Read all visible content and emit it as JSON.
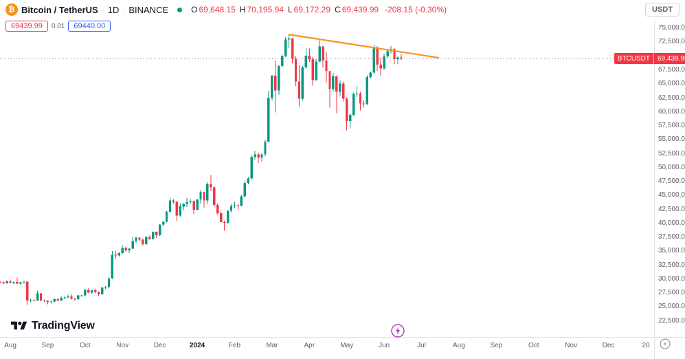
{
  "header": {
    "symbol_icon": "₿",
    "title": "Bitcoin / TetherUS",
    "separator": "·",
    "interval": "1D",
    "exchange": "BINANCE",
    "ohlc": {
      "o_label": "O",
      "o": "69,648.15",
      "h_label": "H",
      "h": "70,195.94",
      "l_label": "L",
      "l": "69,172.29",
      "c_label": "C",
      "c": "69,439.99",
      "change": "-208.15 (-0.30%)"
    },
    "currency_button": "USDT"
  },
  "trade_panel": {
    "sell_price": "69439.99",
    "spread": "0.01",
    "buy_price": "69440.00"
  },
  "price_label": {
    "symbol": "BTCUSDT",
    "price": "69,439.99"
  },
  "logo": {
    "text": "TradingView"
  },
  "chart_data": {
    "type": "candlestick",
    "symbol": "BTCUSDT",
    "exchange": "BINANCE",
    "interval": "1D",
    "grid": false,
    "up_color": "#089981",
    "down_color": "#f23645",
    "current_price": 69439.99,
    "current_price_line_color": "#787b86",
    "trendline": {
      "color": "#f7941d",
      "from_index": 82,
      "from_price": 73750,
      "to_index": 126,
      "to_price": 69600
    },
    "price_axis": {
      "min": 19500,
      "max": 76250,
      "ticks": [
        75000,
        72500,
        67500,
        65000,
        62500,
        60000,
        57500,
        55000,
        52500,
        50000,
        47500,
        45000,
        42500,
        40000,
        37500,
        35000,
        32500,
        30000,
        27500,
        25000,
        22500
      ]
    },
    "time_axis": {
      "ticks": [
        {
          "label": "Aug",
          "index": 0
        },
        {
          "label": "Sep",
          "index": 11
        },
        {
          "label": "Oct",
          "index": 22
        },
        {
          "label": "Nov",
          "index": 33
        },
        {
          "label": "Dec",
          "index": 44
        },
        {
          "label": "2024",
          "index": 55,
          "emphasis": true
        },
        {
          "label": "Feb",
          "index": 66
        },
        {
          "label": "Mar",
          "index": 77
        },
        {
          "label": "Apr",
          "index": 88
        },
        {
          "label": "May",
          "index": 99
        },
        {
          "label": "Jun",
          "index": 110
        },
        {
          "label": "Jul",
          "index": 121
        },
        {
          "label": "Aug",
          "index": 132
        },
        {
          "label": "Sep",
          "index": 143
        },
        {
          "label": "Oct",
          "index": 154
        },
        {
          "label": "Nov",
          "index": 165
        },
        {
          "label": "Dec",
          "index": 176
        },
        {
          "label": "20",
          "index": 187
        }
      ]
    },
    "start_index": -3,
    "candles": [
      [
        29350,
        29600,
        29150,
        29300
      ],
      [
        29300,
        29500,
        29000,
        29150
      ],
      [
        29150,
        29650,
        29050,
        29500
      ],
      [
        29500,
        29780,
        29100,
        29180
      ],
      [
        29180,
        29460,
        28950,
        29400
      ],
      [
        29400,
        30150,
        29250,
        29060
      ],
      [
        29060,
        29360,
        28800,
        29300
      ],
      [
        29300,
        29520,
        29060,
        29420
      ],
      [
        29420,
        29470,
        25250,
        26050
      ],
      [
        26050,
        26360,
        25750,
        26110
      ],
      [
        26110,
        26260,
        25850,
        26010
      ],
      [
        26010,
        27760,
        25960,
        27310
      ],
      [
        27310,
        27420,
        25910,
        26060
      ],
      [
        26060,
        26210,
        25810,
        25960
      ],
      [
        25960,
        26110,
        25350,
        25810
      ],
      [
        25810,
        26060,
        25510,
        25860
      ],
      [
        25860,
        26410,
        25710,
        26260
      ],
      [
        26260,
        26460,
        25910,
        26010
      ],
      [
        26010,
        26860,
        25910,
        26560
      ],
      [
        26560,
        26760,
        26310,
        26610
      ],
      [
        26610,
        27110,
        26460,
        26760
      ],
      [
        26760,
        27210,
        26210,
        26360
      ],
      [
        26360,
        26510,
        26060,
        26260
      ],
      [
        26260,
        27060,
        26160,
        26960
      ],
      [
        26960,
        27110,
        26710,
        26960
      ],
      [
        26960,
        28060,
        26860,
        27960
      ],
      [
        27960,
        28260,
        27310,
        27460
      ],
      [
        27460,
        27960,
        27260,
        27910
      ],
      [
        27910,
        28110,
        27360,
        27560
      ],
      [
        27560,
        27710,
        26910,
        27160
      ],
      [
        27160,
        28410,
        27060,
        28360
      ],
      [
        28360,
        28610,
        28160,
        28460
      ],
      [
        28460,
        30210,
        28310,
        29960
      ],
      [
        29960,
        34910,
        29910,
        34260
      ],
      [
        34260,
        34860,
        33560,
        34110
      ],
      [
        34110,
        34760,
        33910,
        34560
      ],
      [
        34560,
        35960,
        34360,
        35460
      ],
      [
        35460,
        35660,
        34760,
        35060
      ],
      [
        35060,
        35410,
        34560,
        35360
      ],
      [
        35360,
        37460,
        35260,
        36710
      ],
      [
        36710,
        37510,
        36360,
        37310
      ],
      [
        37310,
        37410,
        36660,
        36960
      ],
      [
        36960,
        37210,
        35860,
        36160
      ],
      [
        36160,
        37660,
        36060,
        37410
      ],
      [
        37410,
        37760,
        36910,
        37060
      ],
      [
        37060,
        38460,
        36960,
        38360
      ],
      [
        38360,
        38410,
        37260,
        37760
      ],
      [
        37760,
        39760,
        37660,
        39660
      ],
      [
        39660,
        40260,
        39360,
        40160
      ],
      [
        40160,
        42160,
        40060,
        41960
      ],
      [
        41960,
        44460,
        41860,
        43960
      ],
      [
        43960,
        44260,
        43360,
        43760
      ],
      [
        43760,
        43910,
        40260,
        41260
      ],
      [
        41260,
        43460,
        41060,
        42910
      ],
      [
        42910,
        43510,
        42260,
        43360
      ],
      [
        43360,
        44410,
        42810,
        43710
      ],
      [
        43710,
        44260,
        43310,
        43860
      ],
      [
        43860,
        43960,
        41560,
        42310
      ],
      [
        42310,
        44210,
        42210,
        44160
      ],
      [
        44160,
        45910,
        43410,
        45560
      ],
      [
        45560,
        45610,
        42660,
        43960
      ],
      [
        43960,
        47260,
        43360,
        46960
      ],
      [
        46960,
        48560,
        45660,
        46310
      ],
      [
        46310,
        46510,
        42860,
        43160
      ],
      [
        43160,
        43410,
        41460,
        41710
      ],
      [
        41710,
        42210,
        40260,
        40110
      ],
      [
        40110,
        40360,
        38560,
        39960
      ],
      [
        39960,
        42260,
        39860,
        42110
      ],
      [
        42110,
        43310,
        41810,
        43060
      ],
      [
        43060,
        43760,
        42560,
        43110
      ],
      [
        43110,
        43360,
        42260,
        43010
      ],
      [
        43010,
        44960,
        42910,
        44710
      ],
      [
        44710,
        47560,
        44610,
        47160
      ],
      [
        47160,
        48160,
        46860,
        47960
      ],
      [
        47960,
        52060,
        47810,
        51810
      ],
      [
        51810,
        52860,
        51360,
        52260
      ],
      [
        52260,
        52560,
        50710,
        51710
      ],
      [
        51710,
        52460,
        50960,
        52260
      ],
      [
        52260,
        54910,
        51860,
        54560
      ],
      [
        54560,
        63660,
        54460,
        62460
      ],
      [
        62460,
        66510,
        61910,
        66360
      ],
      [
        66360,
        69060,
        59760,
        63710
      ],
      [
        63710,
        68210,
        62910,
        68110
      ],
      [
        68110,
        70160,
        67860,
        69910
      ],
      [
        69910,
        73260,
        69710,
        72860
      ],
      [
        72860,
        73750,
        71360,
        73060
      ],
      [
        73060,
        73160,
        68610,
        69410
      ],
      [
        69410,
        69910,
        64560,
        65310
      ],
      [
        65310,
        68310,
        60860,
        62260
      ],
      [
        62260,
        68110,
        61960,
        67860
      ],
      [
        67860,
        71360,
        67610,
        69960
      ],
      [
        69960,
        71260,
        68860,
        69360
      ],
      [
        69360,
        69760,
        64610,
        65560
      ],
      [
        65560,
        69360,
        65460,
        68910
      ],
      [
        68910,
        72760,
        68760,
        71610
      ],
      [
        71610,
        71760,
        67860,
        69110
      ],
      [
        69110,
        70660,
        65160,
        67160
      ],
      [
        67160,
        67260,
        60660,
        63960
      ],
      [
        63960,
        66860,
        63510,
        66260
      ],
      [
        66260,
        66460,
        59660,
        63460
      ],
      [
        63460,
        65510,
        62760,
        64960
      ],
      [
        64960,
        65310,
        61760,
        62260
      ],
      [
        62260,
        62510,
        56560,
        58260
      ],
      [
        58260,
        59660,
        56860,
        59360
      ],
      [
        59360,
        63360,
        59160,
        63060
      ],
      [
        63060,
        64460,
        62560,
        63160
      ],
      [
        63160,
        63460,
        60160,
        61360
      ],
      [
        61360,
        61960,
        60660,
        61260
      ],
      [
        61260,
        66460,
        61160,
        66160
      ],
      [
        66160,
        67110,
        65860,
        66910
      ],
      [
        66910,
        71960,
        66760,
        71460
      ],
      [
        71460,
        71660,
        67160,
        68360
      ],
      [
        68360,
        69560,
        66360,
        67660
      ],
      [
        67660,
        70310,
        67460,
        69860
      ],
      [
        69860,
        71060,
        69560,
        70760
      ],
      [
        70760,
        71710,
        70360,
        71110
      ],
      [
        71110,
        71360,
        68460,
        69360
      ],
      [
        69360,
        69860,
        68420,
        69660
      ],
      [
        69660,
        70210,
        69160,
        69440
      ]
    ]
  }
}
